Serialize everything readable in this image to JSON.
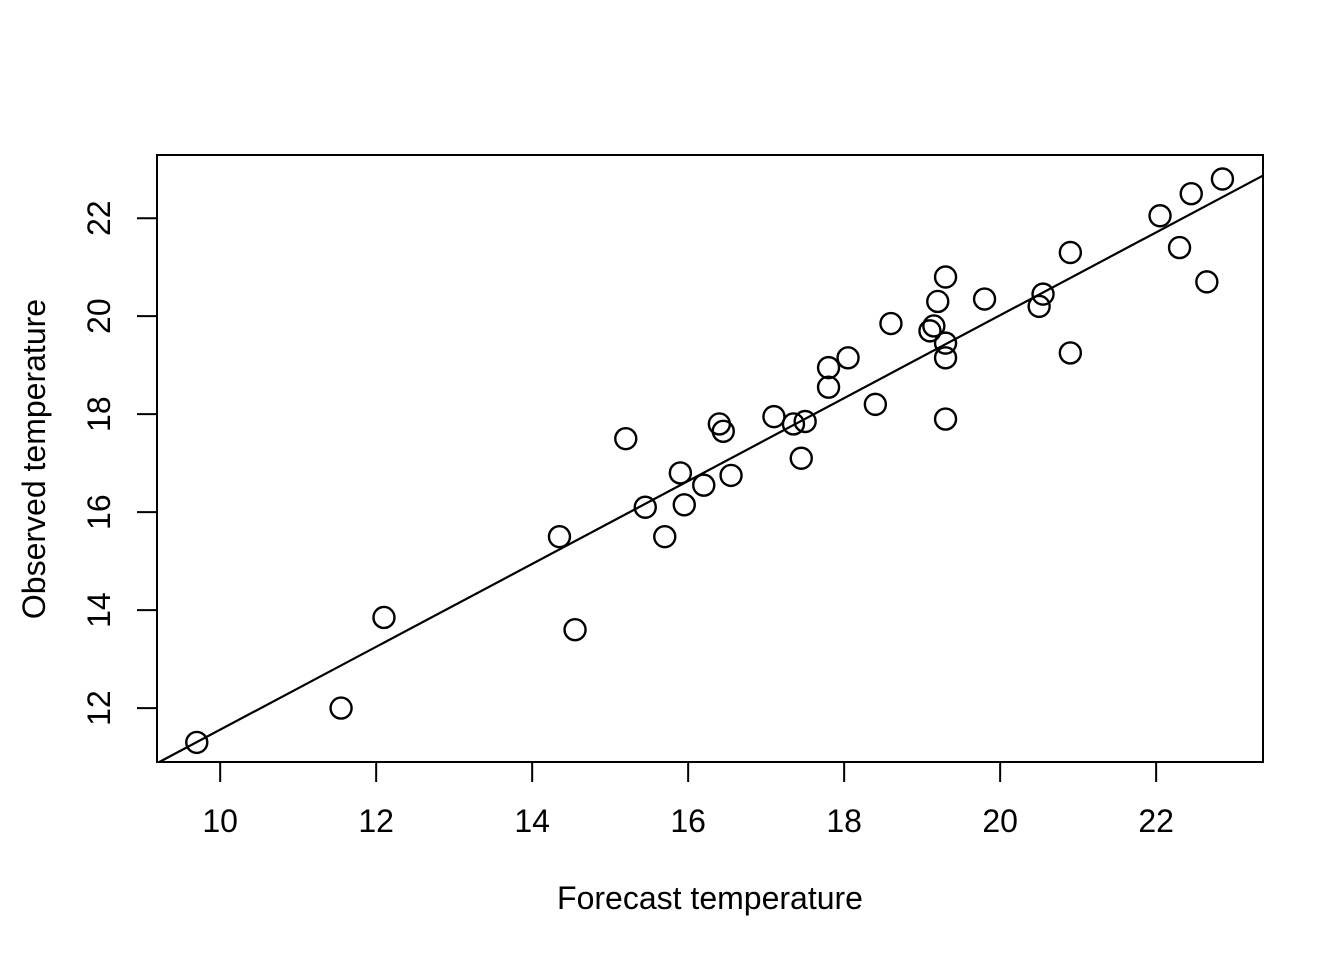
{
  "chart_data": {
    "type": "scatter",
    "title": "",
    "xlabel": "Forecast temperature",
    "ylabel": "Observed temperature",
    "xlim": [
      9.19,
      23.37
    ],
    "ylim": [
      10.9,
      23.29
    ],
    "x_ticks": [
      10,
      12,
      14,
      16,
      18,
      20,
      22
    ],
    "y_ticks": [
      12,
      14,
      16,
      18,
      20,
      22
    ],
    "grid": false,
    "legend": null,
    "marker": "open-circle",
    "colors": {
      "points": "#000000",
      "line": "#000000",
      "axes": "#000000",
      "background": "#ffffff"
    },
    "points": [
      [
        9.7,
        11.3
      ],
      [
        11.55,
        12.0
      ],
      [
        12.1,
        13.85
      ],
      [
        14.35,
        15.5
      ],
      [
        14.55,
        13.6
      ],
      [
        15.2,
        17.5
      ],
      [
        15.45,
        16.1
      ],
      [
        15.7,
        15.5
      ],
      [
        15.9,
        16.8
      ],
      [
        15.95,
        16.15
      ],
      [
        16.2,
        16.55
      ],
      [
        16.55,
        16.75
      ],
      [
        16.4,
        17.8
      ],
      [
        16.45,
        17.65
      ],
      [
        17.1,
        17.95
      ],
      [
        17.35,
        17.8
      ],
      [
        17.5,
        17.85
      ],
      [
        17.45,
        17.1
      ],
      [
        17.8,
        18.55
      ],
      [
        17.8,
        18.95
      ],
      [
        18.05,
        19.15
      ],
      [
        18.4,
        18.2
      ],
      [
        18.6,
        19.85
      ],
      [
        19.1,
        19.7
      ],
      [
        19.15,
        19.8
      ],
      [
        19.3,
        19.45
      ],
      [
        19.3,
        19.15
      ],
      [
        19.2,
        20.3
      ],
      [
        19.3,
        20.8
      ],
      [
        19.8,
        20.35
      ],
      [
        19.3,
        17.9
      ],
      [
        20.5,
        20.2
      ],
      [
        20.55,
        20.45
      ],
      [
        20.9,
        21.3
      ],
      [
        20.9,
        19.25
      ],
      [
        22.05,
        22.05
      ],
      [
        22.3,
        21.4
      ],
      [
        22.45,
        22.5
      ],
      [
        22.65,
        20.7
      ],
      [
        22.85,
        22.8
      ]
    ],
    "reference_line": {
      "endpoints": [
        [
          9.22,
          10.9
        ],
        [
          23.37,
          22.87
        ]
      ]
    }
  }
}
